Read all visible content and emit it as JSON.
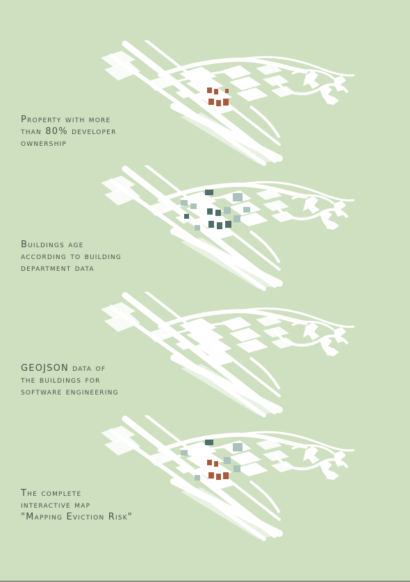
{
  "panels": [
    {
      "caption_lines": [
        "Property with more",
        "than 80% developer",
        "ownership"
      ],
      "highlight_color": "#a85a3c",
      "highlight": "developer-ownership"
    },
    {
      "caption_lines": [
        "Buildings age",
        "according to building",
        "department data"
      ],
      "highlight_color": "#4f6e6a",
      "highlight": "building-age"
    },
    {
      "caption_lines": [
        "GEOJSON data of",
        "the buildings for",
        "software engineering"
      ],
      "highlight_color": "#ffffff",
      "highlight": "none"
    },
    {
      "caption_lines": [
        "The complete",
        "interactive map",
        "\"Mapping Eviction Risk\""
      ],
      "highlight_color": "#a85a3c",
      "highlight": "combined"
    }
  ],
  "colors": {
    "background": "#cee0c0",
    "base_map": "#ffffff",
    "developer": "#a85a3c",
    "age_dark": "#4f6e6a",
    "age_light": "#a9c2bc",
    "text": "#4a5048"
  }
}
